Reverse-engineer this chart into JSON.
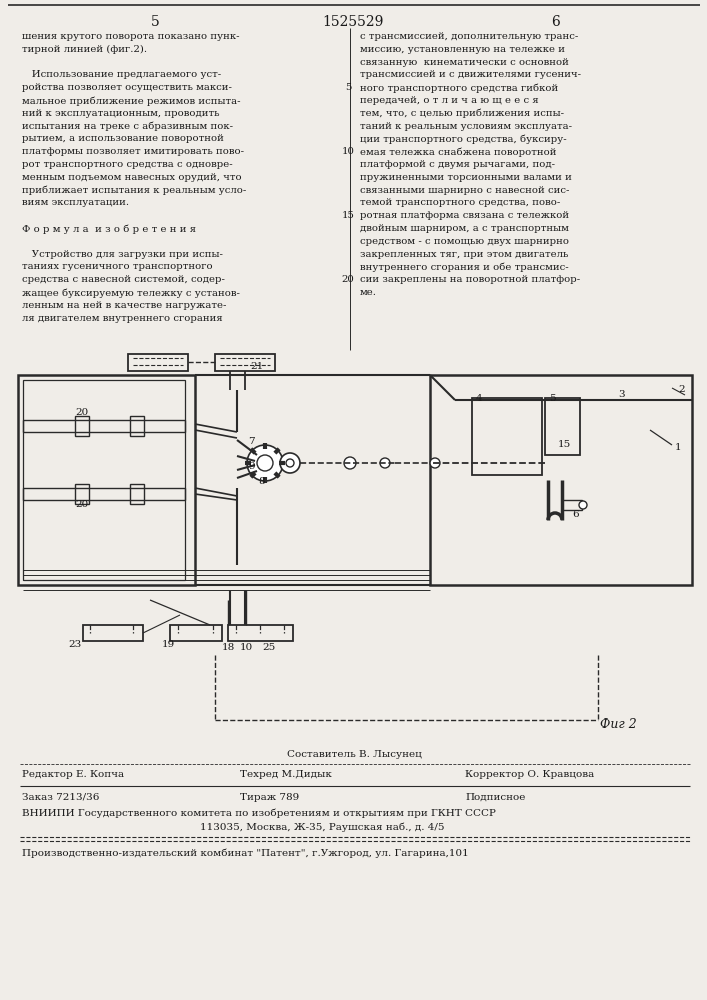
{
  "page_number_left": "5",
  "page_number_center": "1525529",
  "page_number_right": "6",
  "background_color": "#f0ede8",
  "text_color": "#1a1a1a",
  "col1_text": [
    "шения крутого поворота показано пунк-",
    "тирной линией (фиг.2).",
    "",
    "   Использование предлагаемого уст-",
    "ройства позволяет осуществить макси-",
    "мальное приближение режимов испыта-",
    "ний к эксплуатационным, проводить",
    "испытания на треке с абразивным пок-",
    "рытием, а использование поворотной",
    "платформы позволяет имитировать пово-",
    "рот транспортного средства с одновре-",
    "менным подъемом навесных орудий, что",
    "приближает испытания к реальным усло-",
    "виям эксплуатации.",
    "",
    "Ф о р м у л а  и з о б р е т е н и я",
    "",
    "   Устройство для загрузки при испы-",
    "таниях гусеничного транспортного",
    "средства с навесной системой, содер-",
    "жащее буксируемую тележку с установ-",
    "ленным на ней в качестве нагружате-",
    "ля двигателем внутреннего сгорания"
  ],
  "col2_text": [
    "с трансмиссией, дополнительную транс-",
    "миссию, установленную на тележке и",
    "связанную  кинематически с основной",
    "трансмиссией и с движителями гусенич-",
    "ного транспортного средства гибкой",
    "передачей, о т л и ч а ю щ е е с я",
    "тем, что, с целью приближения испы-",
    "таний к реальным условиям эксплуата-",
    "ции транспортного средства, буксиру-",
    "емая тележка снабжена поворотной",
    "платформой с двумя рычагами, под-",
    "пружиненными торсионными валами и",
    "связанными шарнирно с навесной сис-",
    "темой транспортного средства, пово-",
    "ротная платформа связана с тележкой",
    "двойным шарниром, а с транспортным",
    "средством - с помощью двух шарнирно",
    "закрепленных тяг, при этом двигатель",
    "внутреннего сгорания и обе трансмис-",
    "сии закреплены на поворотной платфор-",
    "ме."
  ],
  "col2_line_numbers": [
    5,
    10,
    15,
    20
  ],
  "footer_sestavitel": "Составитель В. Лысунец",
  "footer_redaktor": "Редактор Е. Копча",
  "footer_tehred": "Техред М.Дидык",
  "footer_korrektor": "Корректор О. Кравцова",
  "footer_zakaz": "Заказ 7213/36",
  "footer_tirazh": "Тираж 789",
  "footer_podpisnoe": "Подписное",
  "footer_vniiipi": "ВНИИПИ Государственного комитета по изобретениям и открытиям при ГКНТ СССР",
  "footer_address": "113035, Москва, Ж-35, Раушская наб., д. 4/5",
  "footer_kombinat": "Производственно-издательский комбинат \"Патент\", г.Ужгород, ул. Гагарина,101",
  "fig_label": "Фиг 2"
}
